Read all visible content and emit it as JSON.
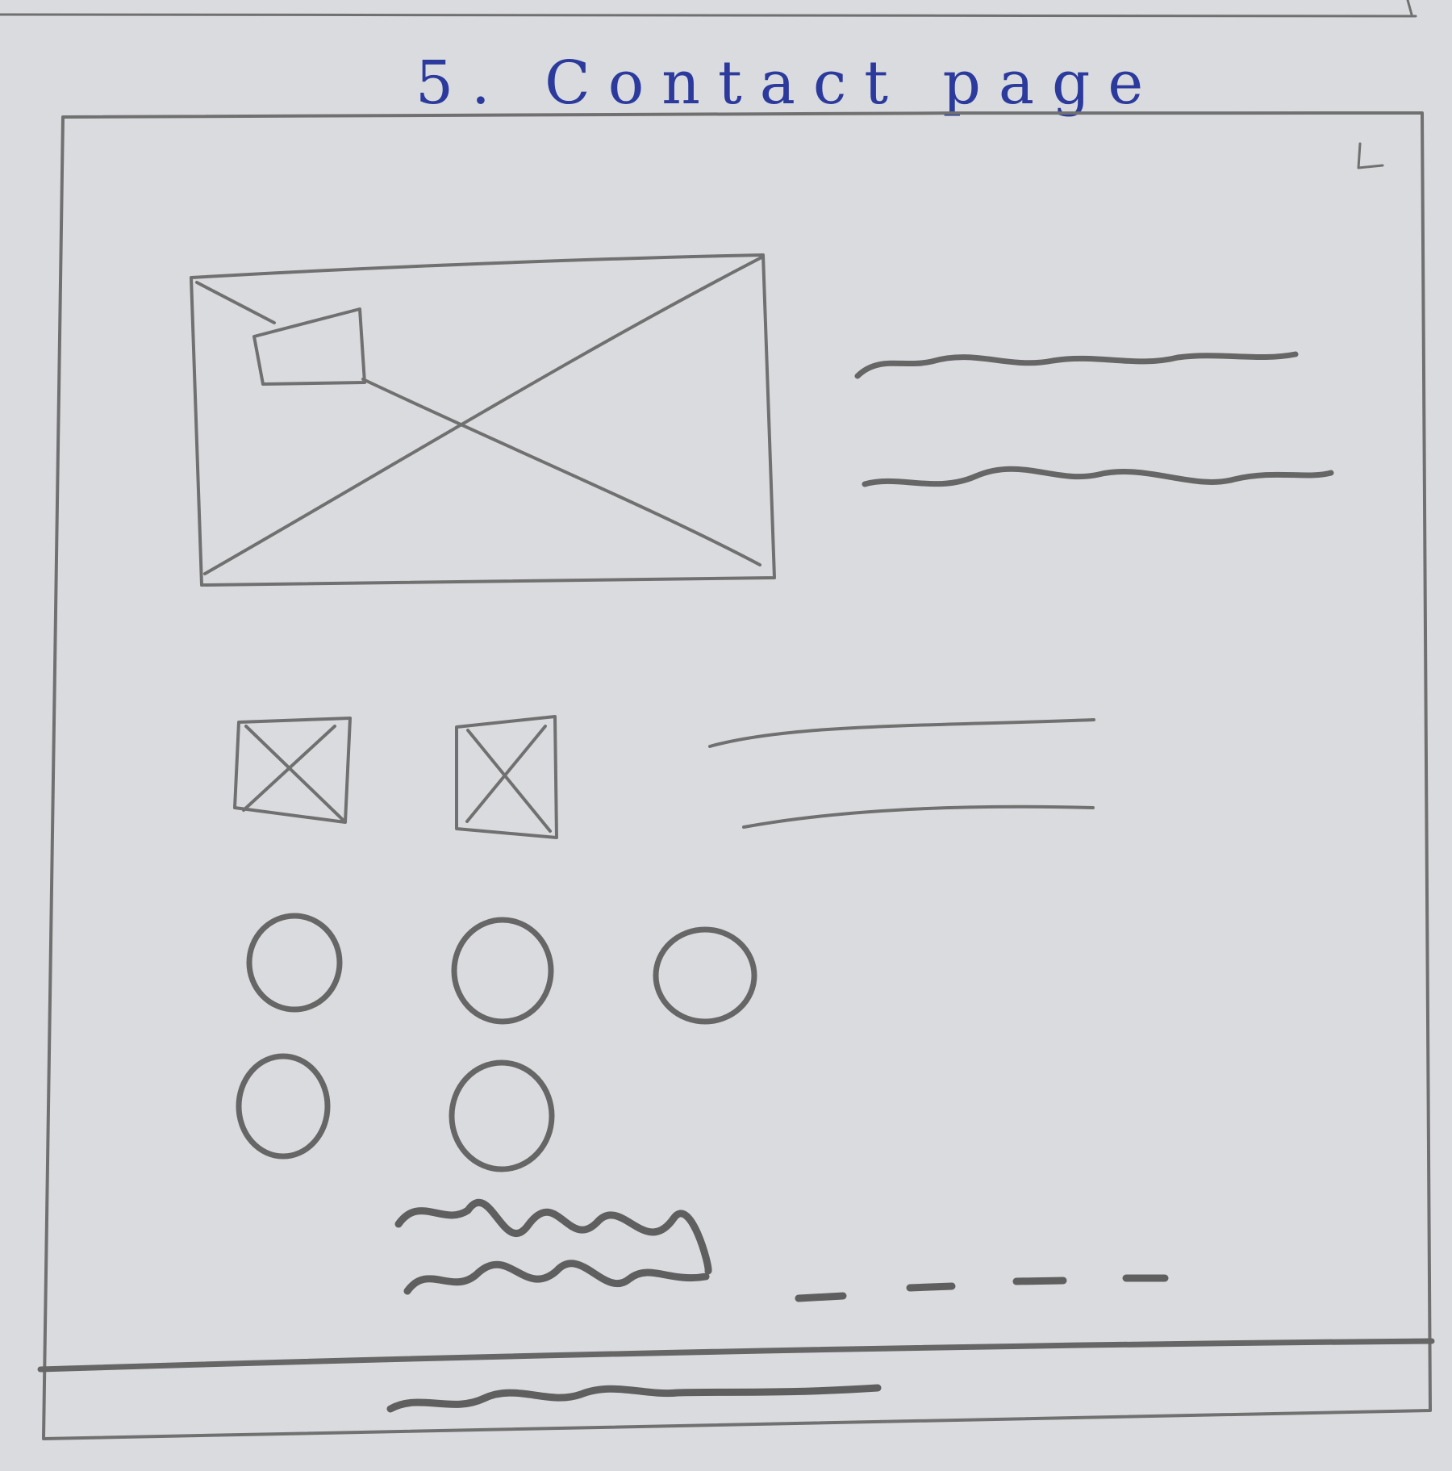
{
  "sketch": {
    "title": "5. Contact page",
    "corner_mark_icon": "corner-mark-icon",
    "hero_image_icon": "image-placeholder-icon",
    "small_image_icon": "image-placeholder-icon",
    "checkbox_icon": "checked-box-icon",
    "radio_icon": "radio-button-icon",
    "scribble_icon": "handwritten-scribble-icon",
    "dash_icon": "dash-placeholder-icon",
    "stroke_color": "#707070",
    "title_color": "#2b3a9c",
    "paper_color": "#e6e7e9"
  }
}
